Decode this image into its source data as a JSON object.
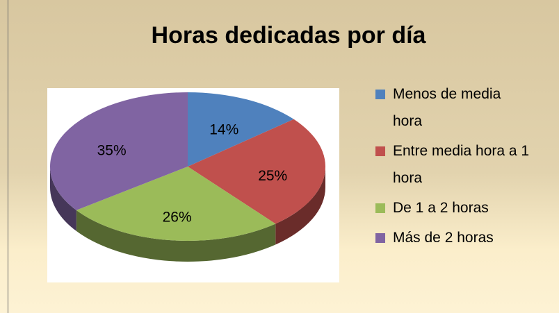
{
  "chart_data": {
    "type": "pie",
    "title": "Horas dedicadas por día",
    "categories": [
      "Menos de media hora",
      "Entre media hora a 1 hora",
      "De 1 a 2 horas",
      "Más de 2 horas"
    ],
    "values": [
      14,
      25,
      26,
      35
    ],
    "value_labels": [
      "14%",
      "25%",
      "26%",
      "35%"
    ],
    "colors": [
      "#4f81bd",
      "#c0504d",
      "#9bbb59",
      "#8064a2"
    ],
    "legend": "right"
  }
}
